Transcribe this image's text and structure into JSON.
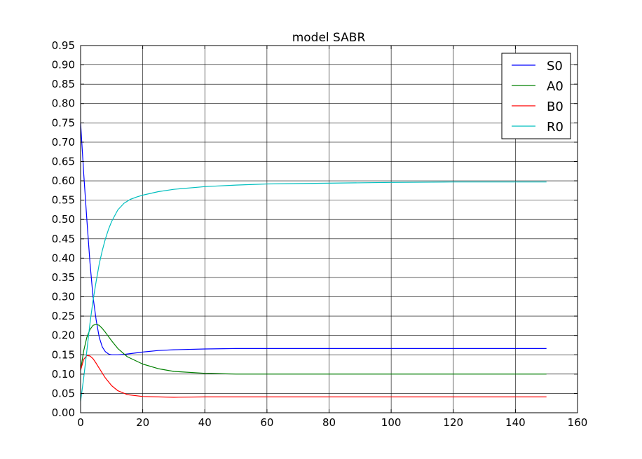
{
  "chart_data": {
    "type": "line",
    "title": "model SABR",
    "xlabel": "",
    "ylabel": "",
    "xlim": [
      0,
      160
    ],
    "ylim": [
      0,
      0.95
    ],
    "xticks": [
      0,
      20,
      40,
      60,
      80,
      100,
      120,
      140,
      160
    ],
    "yticks": [
      0.0,
      0.05,
      0.1,
      0.15,
      0.2,
      0.25,
      0.3,
      0.35,
      0.4,
      0.45,
      0.5,
      0.55,
      0.6,
      0.65,
      0.7,
      0.75,
      0.8,
      0.85,
      0.9,
      0.95
    ],
    "xtick_labels": [
      "0",
      "20",
      "40",
      "60",
      "80",
      "100",
      "120",
      "140",
      "160"
    ],
    "ytick_labels": [
      "0.00",
      "0.05",
      "0.10",
      "0.15",
      "0.20",
      "0.25",
      "0.30",
      "0.35",
      "0.40",
      "0.45",
      "0.50",
      "0.55",
      "0.60",
      "0.65",
      "0.70",
      "0.75",
      "0.80",
      "0.85",
      "0.90",
      "0.95"
    ],
    "grid": true,
    "legend_position": "top-right",
    "series": [
      {
        "name": "S0",
        "color": "#0000ff",
        "x": [
          0,
          1,
          2,
          3,
          4,
          5,
          6,
          7,
          8,
          9,
          10,
          12,
          14,
          16,
          20,
          25,
          30,
          40,
          50,
          60,
          80,
          100,
          120,
          150
        ],
        "y": [
          0.75,
          0.62,
          0.5,
          0.39,
          0.3,
          0.24,
          0.195,
          0.17,
          0.158,
          0.152,
          0.15,
          0.15,
          0.151,
          0.153,
          0.157,
          0.161,
          0.163,
          0.165,
          0.166,
          0.166,
          0.166,
          0.166,
          0.166,
          0.166
        ]
      },
      {
        "name": "A0",
        "color": "#008000",
        "x": [
          0,
          1,
          2,
          3,
          4,
          5,
          6,
          7,
          8,
          10,
          12,
          15,
          20,
          25,
          30,
          40,
          50,
          60,
          80,
          100,
          120,
          150
        ],
        "y": [
          0.11,
          0.16,
          0.195,
          0.215,
          0.226,
          0.229,
          0.226,
          0.218,
          0.208,
          0.186,
          0.166,
          0.145,
          0.126,
          0.114,
          0.107,
          0.102,
          0.1,
          0.1,
          0.1,
          0.1,
          0.1,
          0.1
        ]
      },
      {
        "name": "B0",
        "color": "#ff0000",
        "x": [
          0,
          1,
          2,
          3,
          4,
          5,
          6,
          8,
          10,
          12,
          15,
          20,
          25,
          30,
          40,
          60,
          80,
          100,
          120,
          150
        ],
        "y": [
          0.11,
          0.138,
          0.148,
          0.147,
          0.14,
          0.128,
          0.115,
          0.09,
          0.07,
          0.057,
          0.047,
          0.042,
          0.041,
          0.04,
          0.041,
          0.041,
          0.041,
          0.041,
          0.041,
          0.041
        ]
      },
      {
        "name": "R0",
        "color": "#00bfbf",
        "x": [
          0,
          1,
          2,
          3,
          4,
          5,
          6,
          7,
          8,
          9,
          10,
          12,
          14,
          16,
          18,
          20,
          25,
          30,
          40,
          50,
          60,
          80,
          100,
          120,
          150
        ],
        "y": [
          0.03,
          0.09,
          0.16,
          0.23,
          0.29,
          0.34,
          0.385,
          0.42,
          0.45,
          0.475,
          0.495,
          0.525,
          0.542,
          0.552,
          0.558,
          0.563,
          0.572,
          0.578,
          0.585,
          0.589,
          0.592,
          0.594,
          0.596,
          0.597,
          0.597
        ]
      }
    ]
  }
}
